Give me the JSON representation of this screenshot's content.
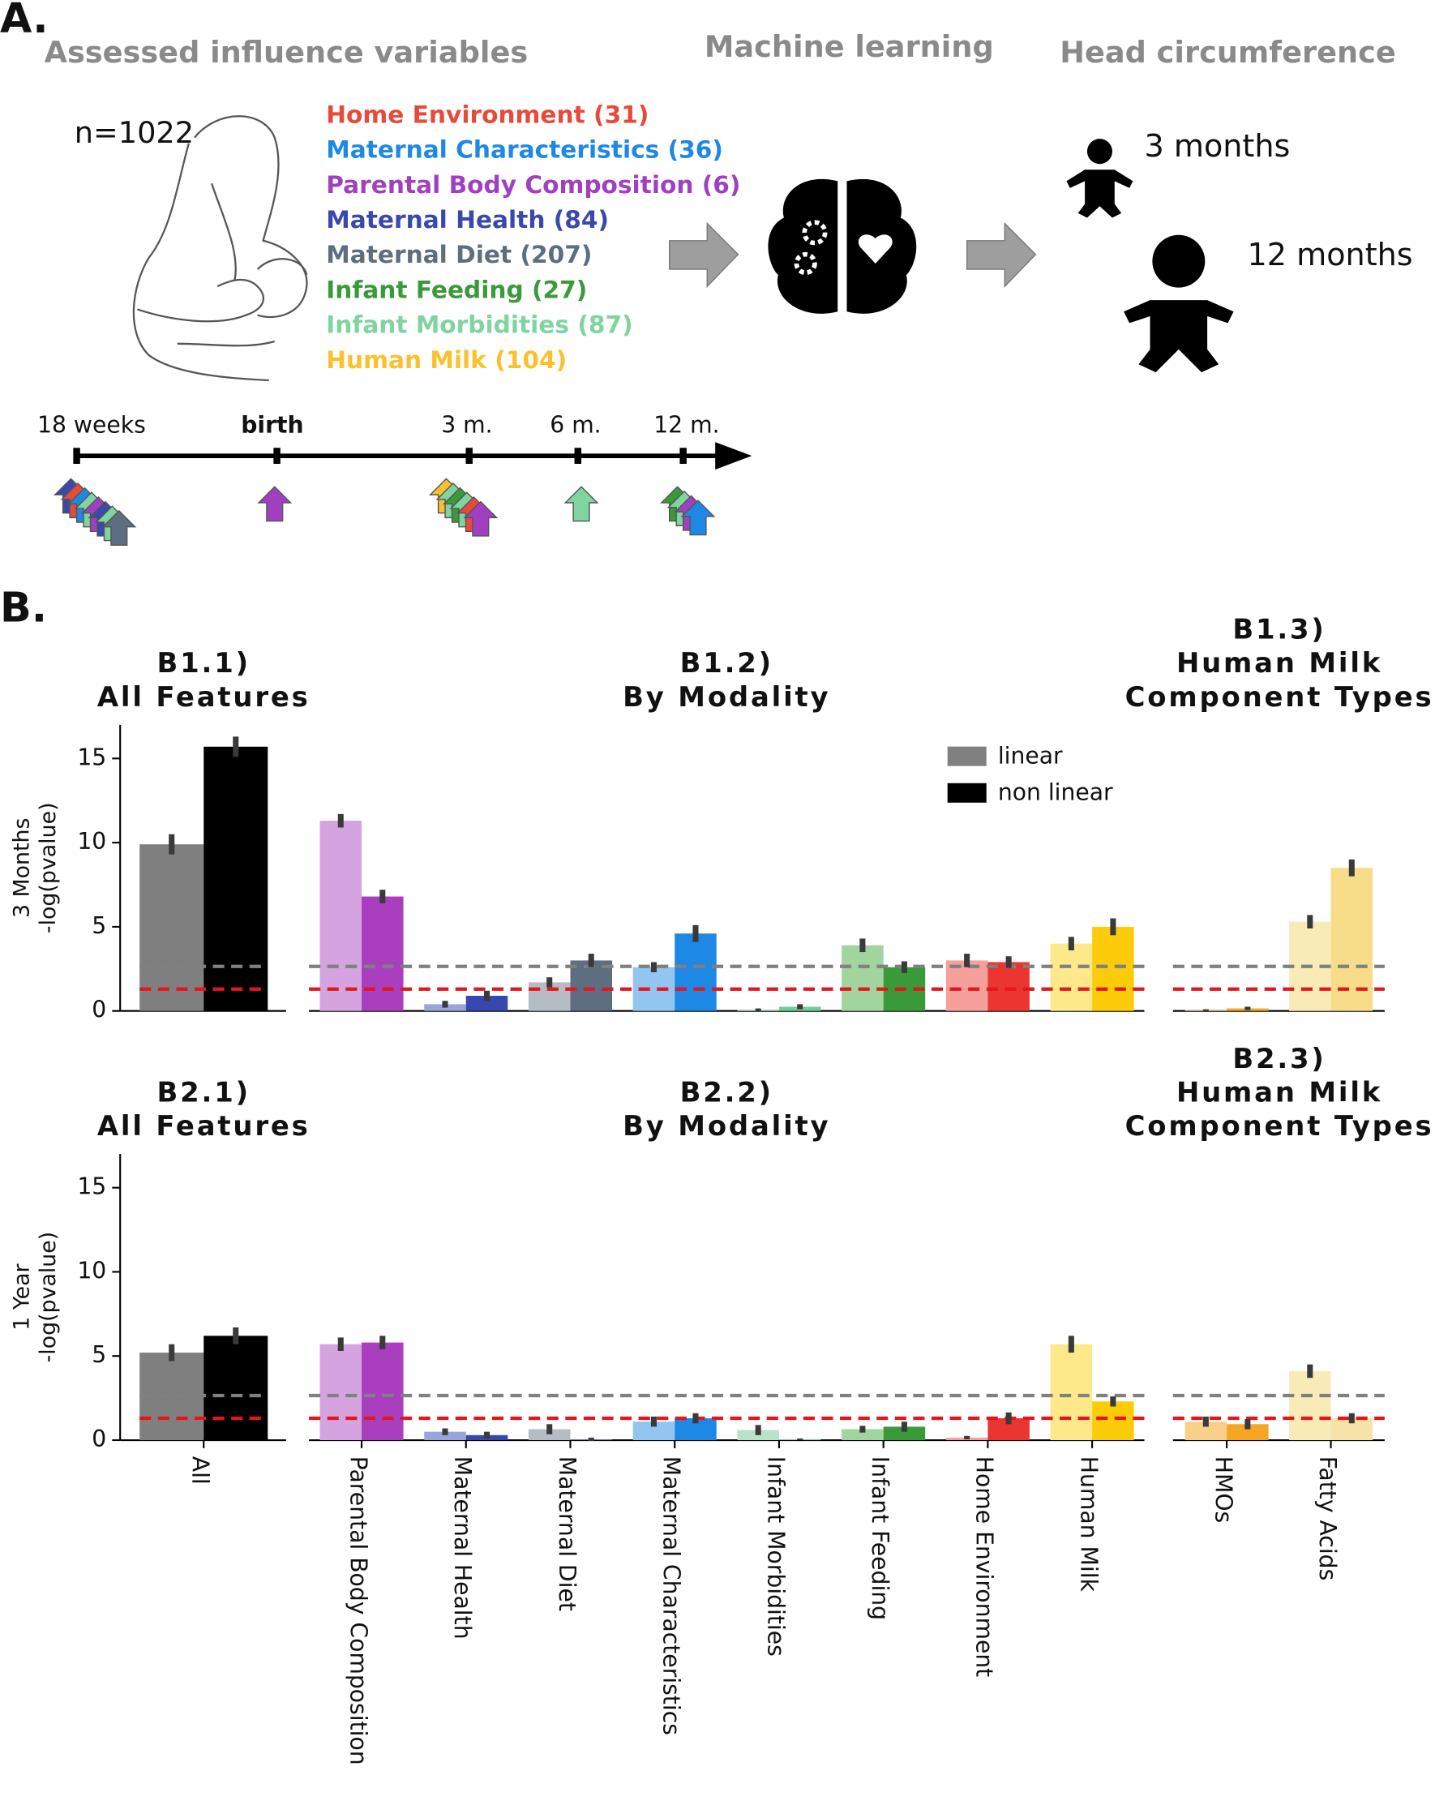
{
  "panel_a": {
    "label": "A.",
    "headers": [
      "Assessed influence variables",
      "Machine learning",
      "Head circumference"
    ],
    "cohort": "n=1022",
    "variables": [
      {
        "text": "Home Environment (31)",
        "color": "#e84a3a"
      },
      {
        "text": "Maternal Characteristics (36)",
        "color": "#1e88e5"
      },
      {
        "text": "Parental Body Composition (6)",
        "color": "#a040c0"
      },
      {
        "text": "Maternal Health (84)",
        "color": "#3949ab"
      },
      {
        "text": "Maternal Diet (207)",
        "color": "#5d6e80"
      },
      {
        "text": "Infant Feeding (27)",
        "color": "#3a9a3a"
      },
      {
        "text": "Infant Morbidities (87)",
        "color": "#7fd4a0"
      },
      {
        "text": "Human Milk (104)",
        "color": "#fbc02d"
      }
    ],
    "outcomes": [
      "3 months",
      "12 months"
    ],
    "timeline": [
      "18 weeks",
      "birth",
      "3 m.",
      "6 m.",
      "12 m."
    ]
  },
  "panel_b_label": "B.",
  "chart_data": [
    {
      "type": "bar",
      "title": [
        "B1.1)",
        "All Features"
      ],
      "ylabel": [
        "3 Months",
        "-log(pvalue)"
      ],
      "ylim": [
        0,
        17
      ],
      "yticks": [
        0,
        5,
        10,
        15
      ],
      "hlines": [
        {
          "value": 2.65,
          "color": "#808080"
        },
        {
          "value": 1.3,
          "color": "#e8141c"
        }
      ],
      "series": [
        {
          "color": "#7f7f7f",
          "values": [
            9.9
          ],
          "errors": [
            0.6
          ]
        },
        {
          "color": "#000000",
          "values": [
            15.7
          ],
          "errors": [
            0.6
          ]
        }
      ]
    },
    {
      "type": "bar",
      "title": [
        "B1.2)",
        "By Modality"
      ],
      "ylim": [
        0,
        17
      ],
      "hlines": [
        {
          "value": 2.65,
          "color": "#808080"
        },
        {
          "value": 1.3,
          "color": "#e8141c"
        }
      ],
      "series": [
        {
          "name": "linear",
          "color": "#808080",
          "values": [
            11.3,
            0.4,
            1.7,
            2.6,
            0.05,
            3.9,
            3.0,
            4.0
          ],
          "errors": [
            0.4,
            0.2,
            0.3,
            0.3,
            0.1,
            0.4,
            0.4,
            0.4
          ],
          "bar_colors": [
            "#d4a3e0",
            "#98a5dc",
            "#b5bcc4",
            "#92c5f0",
            "#b8e3c8",
            "#a2d4a0",
            "#f5a09a",
            "#fde98a"
          ]
        },
        {
          "name": "non linear",
          "color": "#000000",
          "values": [
            6.8,
            0.9,
            3.0,
            4.6,
            0.25,
            2.6,
            2.9,
            5.0
          ],
          "errors": [
            0.4,
            0.3,
            0.4,
            0.5,
            0.15,
            0.35,
            0.35,
            0.5
          ],
          "bar_colors": [
            "#a93fbf",
            "#3648ad",
            "#5d6e80",
            "#1e88e5",
            "#6dcf98",
            "#3a9a3a",
            "#ea3530",
            "#fccc0a"
          ]
        }
      ]
    },
    {
      "type": "bar",
      "title": [
        "B1.3)",
        "Human Milk",
        "Component Types"
      ],
      "ylim": [
        0,
        17
      ],
      "hlines": [
        {
          "value": 2.65,
          "color": "#808080"
        },
        {
          "value": 1.3,
          "color": "#e8141c"
        }
      ],
      "series": [
        {
          "color": "#808080",
          "values": [
            0.05,
            5.3
          ],
          "errors": [
            0.05,
            0.4
          ],
          "bar_colors": [
            "#f8d08a",
            "#f9ebb8"
          ]
        },
        {
          "color": "#000000",
          "values": [
            0.15,
            8.5
          ],
          "errors": [
            0.1,
            0.5
          ],
          "bar_colors": [
            "#f5a623",
            "#f7dc8a"
          ]
        }
      ]
    },
    {
      "type": "bar",
      "title": [
        "B2.1)",
        "All Features"
      ],
      "ylabel": [
        "1 Year",
        "-log(pvalue)"
      ],
      "ylim": [
        0,
        17
      ],
      "yticks": [
        0,
        5,
        10,
        15
      ],
      "categories": [
        "All"
      ],
      "hlines": [
        {
          "value": 2.65,
          "color": "#808080"
        },
        {
          "value": 1.3,
          "color": "#e8141c"
        }
      ],
      "series": [
        {
          "color": "#7f7f7f",
          "values": [
            5.2
          ],
          "errors": [
            0.5
          ]
        },
        {
          "color": "#000000",
          "values": [
            6.2
          ],
          "errors": [
            0.5
          ]
        }
      ]
    },
    {
      "type": "bar",
      "title": [
        "B2.2)",
        "By Modality"
      ],
      "ylim": [
        0,
        17
      ],
      "categories": [
        "Parental Body Composition",
        "Maternal Health",
        "Maternal Diet",
        "Maternal Characteristics",
        "Infant Morbidities",
        "Infant Feeding",
        "Home Environment",
        "Human Milk"
      ],
      "hlines": [
        {
          "value": 2.65,
          "color": "#808080"
        },
        {
          "value": 1.3,
          "color": "#e8141c"
        }
      ],
      "series": [
        {
          "color": "#808080",
          "values": [
            5.7,
            0.5,
            0.65,
            1.1,
            0.6,
            0.65,
            0.15,
            5.7
          ],
          "errors": [
            0.4,
            0.2,
            0.3,
            0.3,
            0.3,
            0.2,
            0.1,
            0.5
          ],
          "bar_colors": [
            "#d4a3e0",
            "#98a5dc",
            "#b5bcc4",
            "#92c5f0",
            "#b8e3c8",
            "#a2d4a0",
            "#f5a09a",
            "#fde98a"
          ]
        },
        {
          "color": "#000000",
          "values": [
            5.8,
            0.3,
            0.05,
            1.3,
            0.05,
            0.8,
            1.3,
            2.3
          ],
          "errors": [
            0.4,
            0.2,
            0.1,
            0.3,
            0.05,
            0.3,
            0.35,
            0.3
          ],
          "bar_colors": [
            "#a93fbf",
            "#3648ad",
            "#5d6e80",
            "#1e88e5",
            "#6dcf98",
            "#3a9a3a",
            "#ea3530",
            "#fccc0a"
          ]
        }
      ]
    },
    {
      "type": "bar",
      "title": [
        "B2.3)",
        "Human Milk",
        "Component Types"
      ],
      "ylim": [
        0,
        17
      ],
      "categories": [
        "HMOs",
        "Fatty Acids"
      ],
      "hlines": [
        {
          "value": 2.65,
          "color": "#808080"
        },
        {
          "value": 1.3,
          "color": "#e8141c"
        }
      ],
      "series": [
        {
          "color": "#808080",
          "values": [
            1.1,
            4.1
          ],
          "errors": [
            0.3,
            0.4
          ],
          "bar_colors": [
            "#f8d08a",
            "#f9ebb8"
          ]
        },
        {
          "color": "#000000",
          "values": [
            0.95,
            1.3
          ],
          "errors": [
            0.3,
            0.3
          ],
          "bar_colors": [
            "#f5a623",
            "#f7e3a8"
          ]
        }
      ]
    }
  ]
}
